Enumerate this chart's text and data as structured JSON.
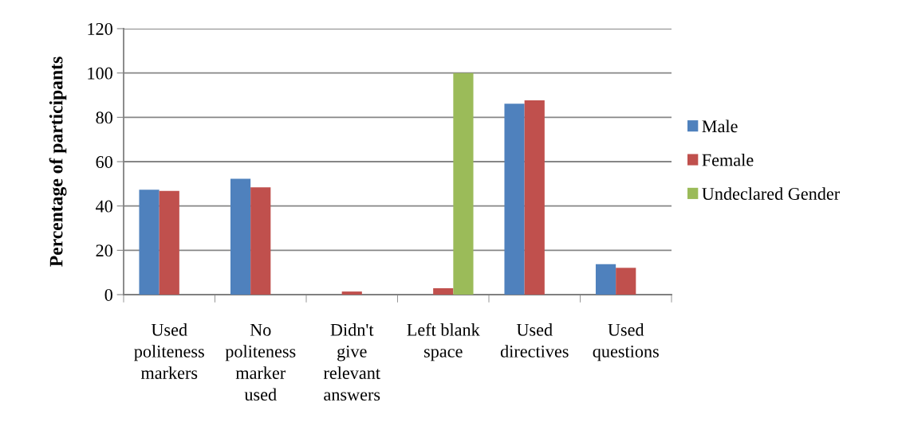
{
  "chart_data": {
    "type": "bar",
    "ylabel": "Percentage of participants",
    "categories": [
      "Used\npoliteness\nmarkers",
      "No\npoliteness\nmarker\nused",
      "Didn't\ngive\nrelevant\nanswers",
      "Left blank\nspace",
      "Used\ndirectives",
      "Used\nquestions"
    ],
    "series": [
      {
        "name": "Male",
        "color": "#4f81bd",
        "values": [
          47.3,
          52.3,
          0,
          0,
          86.1,
          13.7
        ]
      },
      {
        "name": "Female",
        "color": "#c0504d",
        "values": [
          46.8,
          48.4,
          1.4,
          2.9,
          87.7,
          12.1
        ]
      },
      {
        "name": "Undeclared Gender",
        "color": "#9bbb59",
        "values": [
          0,
          0,
          0,
          100,
          0,
          0
        ]
      }
    ],
    "ylim": [
      0,
      120
    ],
    "yticks": [
      0,
      20,
      40,
      60,
      80,
      100,
      120
    ],
    "grid": "y",
    "legend": "right"
  }
}
